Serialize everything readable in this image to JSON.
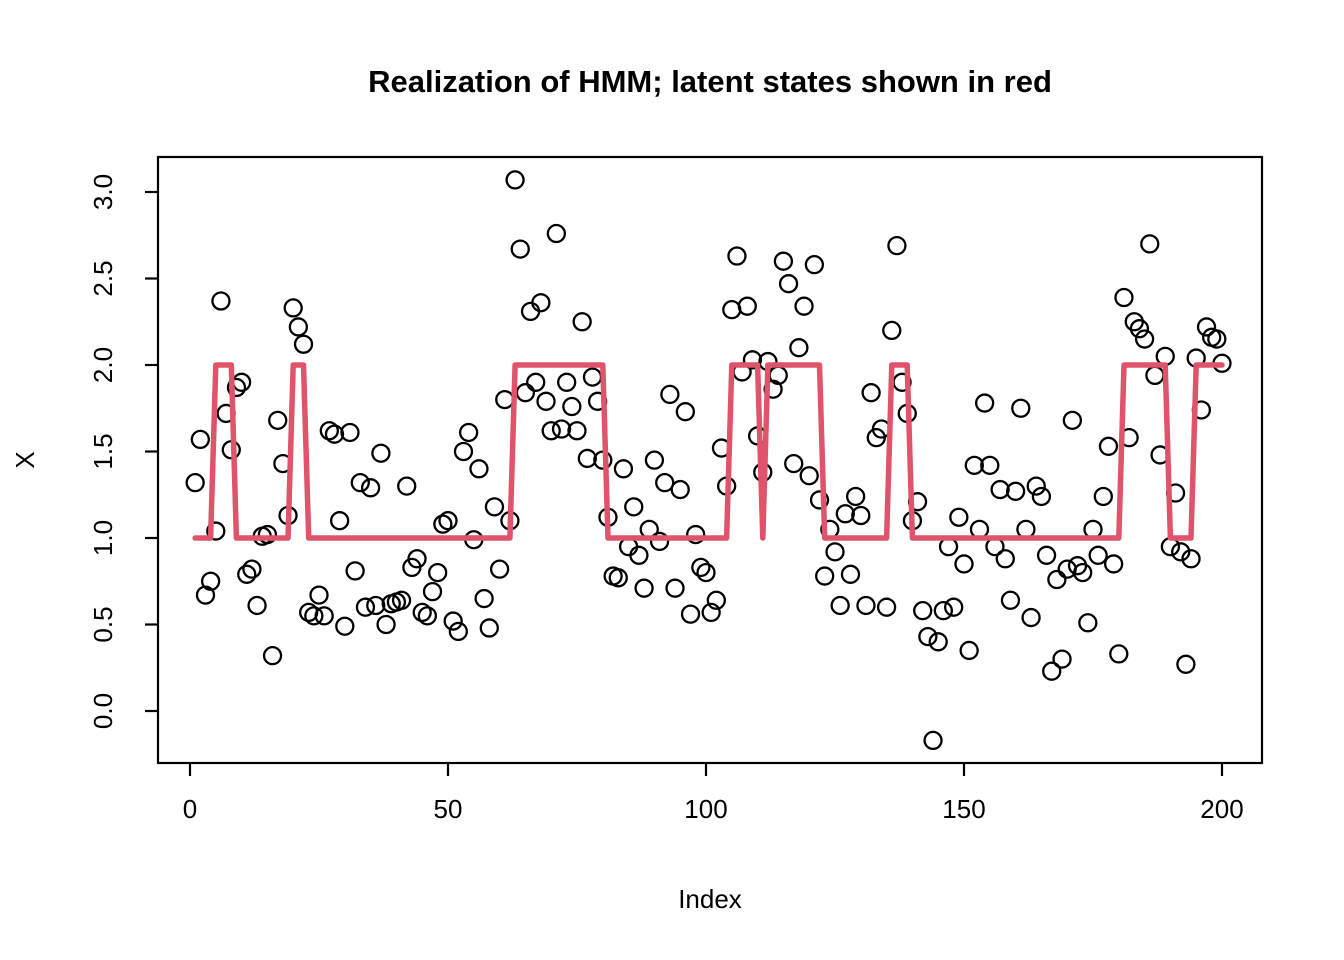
{
  "chart_data": {
    "type": "scatter",
    "title": "Realization of HMM; latent states shown in red",
    "xlabel": "Index",
    "ylabel": "X",
    "x_ticks": [
      0,
      50,
      100,
      150,
      200
    ],
    "x_tick_labels": [
      "0",
      "50",
      "100",
      "150",
      "200"
    ],
    "y_ticks": [
      0.0,
      0.5,
      1.0,
      1.5,
      2.0,
      2.5,
      3.0
    ],
    "y_tick_labels": [
      "0.0",
      "0.5",
      "1.0",
      "1.5",
      "2.0",
      "2.5",
      "3.0"
    ],
    "xlim": [
      -7,
      208
    ],
    "ylim": [
      -0.32,
      3.2
    ],
    "grid": false,
    "legend_position": "none",
    "n_points": 200,
    "x_start": 1,
    "colors": {
      "points": "#000000",
      "state_line": "#DF536B",
      "background": "#FFFFFF",
      "axis": "#000000"
    },
    "series": [
      {
        "name": "observations",
        "type": "scatter",
        "marker": "open-circle",
        "color": "#000000",
        "values": [
          1.32,
          1.57,
          0.67,
          0.75,
          1.04,
          2.37,
          1.72,
          1.51,
          1.87,
          1.9,
          0.79,
          0.82,
          0.61,
          1.01,
          1.02,
          0.32,
          1.68,
          1.43,
          1.13,
          2.33,
          2.22,
          2.12,
          0.57,
          0.55,
          0.67,
          0.55,
          1.62,
          1.6,
          1.1,
          0.49,
          1.61,
          0.81,
          1.32,
          0.6,
          1.29,
          0.61,
          1.49,
          0.5,
          0.62,
          0.63,
          0.64,
          1.3,
          0.83,
          0.88,
          0.57,
          0.55,
          0.69,
          0.8,
          1.08,
          1.1,
          0.52,
          0.46,
          1.5,
          1.61,
          0.99,
          1.4,
          0.65,
          0.48,
          1.18,
          0.82,
          1.8,
          1.1,
          3.07,
          2.67,
          1.84,
          2.31,
          1.9,
          2.36,
          1.79,
          1.62,
          2.76,
          1.63,
          1.9,
          1.76,
          1.62,
          2.25,
          1.46,
          1.93,
          1.79,
          1.45,
          1.12,
          0.78,
          0.77,
          1.4,
          0.95,
          1.18,
          0.9,
          0.71,
          1.05,
          1.45,
          0.98,
          1.32,
          1.83,
          0.71,
          1.28,
          1.73,
          0.56,
          1.02,
          0.83,
          0.8,
          0.57,
          0.64,
          1.52,
          1.3,
          2.32,
          2.63,
          1.96,
          2.34,
          2.03,
          1.59,
          1.38,
          2.02,
          1.86,
          1.94,
          2.6,
          2.47,
          1.43,
          2.1,
          2.34,
          1.36,
          2.58,
          1.22,
          0.78,
          1.05,
          0.92,
          0.61,
          1.14,
          0.79,
          1.24,
          1.13,
          0.61,
          1.84,
          1.58,
          1.63,
          0.6,
          2.2,
          2.69,
          1.9,
          1.72,
          1.1,
          1.21,
          0.58,
          0.43,
          -0.17,
          0.4,
          0.58,
          0.95,
          0.6,
          1.12,
          0.85,
          0.35,
          1.42,
          1.05,
          1.78,
          1.42,
          0.95,
          1.28,
          0.88,
          0.64,
          1.27,
          1.75,
          1.05,
          0.54,
          1.3,
          1.24,
          0.9,
          0.23,
          0.76,
          0.3,
          0.82,
          1.68,
          0.84,
          0.8,
          0.51,
          1.05,
          0.9,
          1.24,
          1.53,
          0.85,
          0.33,
          2.39,
          1.58,
          2.25,
          2.21,
          2.15,
          2.7,
          1.94,
          1.48,
          2.05,
          0.95,
          1.26,
          0.92,
          0.27,
          0.88,
          2.04,
          1.74,
          2.22,
          2.16,
          2.15,
          2.01
        ]
      },
      {
        "name": "latent states",
        "type": "line",
        "color": "#DF536B",
        "values": [
          1,
          1,
          1,
          1,
          2,
          2,
          2,
          2,
          1,
          1,
          1,
          1,
          1,
          1,
          1,
          1,
          1,
          1,
          1,
          2,
          2,
          2,
          1,
          1,
          1,
          1,
          1,
          1,
          1,
          1,
          1,
          1,
          1,
          1,
          1,
          1,
          1,
          1,
          1,
          1,
          1,
          1,
          1,
          1,
          1,
          1,
          1,
          1,
          1,
          1,
          1,
          1,
          1,
          1,
          1,
          1,
          1,
          1,
          1,
          1,
          1,
          1,
          2,
          2,
          2,
          2,
          2,
          2,
          2,
          2,
          2,
          2,
          2,
          2,
          2,
          2,
          2,
          2,
          2,
          2,
          1,
          1,
          1,
          1,
          1,
          1,
          1,
          1,
          1,
          1,
          1,
          1,
          1,
          1,
          1,
          1,
          1,
          1,
          1,
          1,
          1,
          1,
          1,
          1,
          2,
          2,
          2,
          2,
          2,
          2,
          1,
          2,
          2,
          2,
          2,
          2,
          2,
          2,
          2,
          2,
          2,
          2,
          1,
          1,
          1,
          1,
          1,
          1,
          1,
          1,
          1,
          1,
          1,
          1,
          1,
          2,
          2,
          2,
          2,
          1,
          1,
          1,
          1,
          1,
          1,
          1,
          1,
          1,
          1,
          1,
          1,
          1,
          1,
          1,
          1,
          1,
          1,
          1,
          1,
          1,
          1,
          1,
          1,
          1,
          1,
          1,
          1,
          1,
          1,
          1,
          1,
          1,
          1,
          1,
          1,
          1,
          1,
          1,
          1,
          1,
          2,
          2,
          2,
          2,
          2,
          2,
          2,
          2,
          2,
          1,
          1,
          1,
          1,
          1,
          2,
          2,
          2,
          2,
          2,
          2
        ]
      }
    ]
  }
}
